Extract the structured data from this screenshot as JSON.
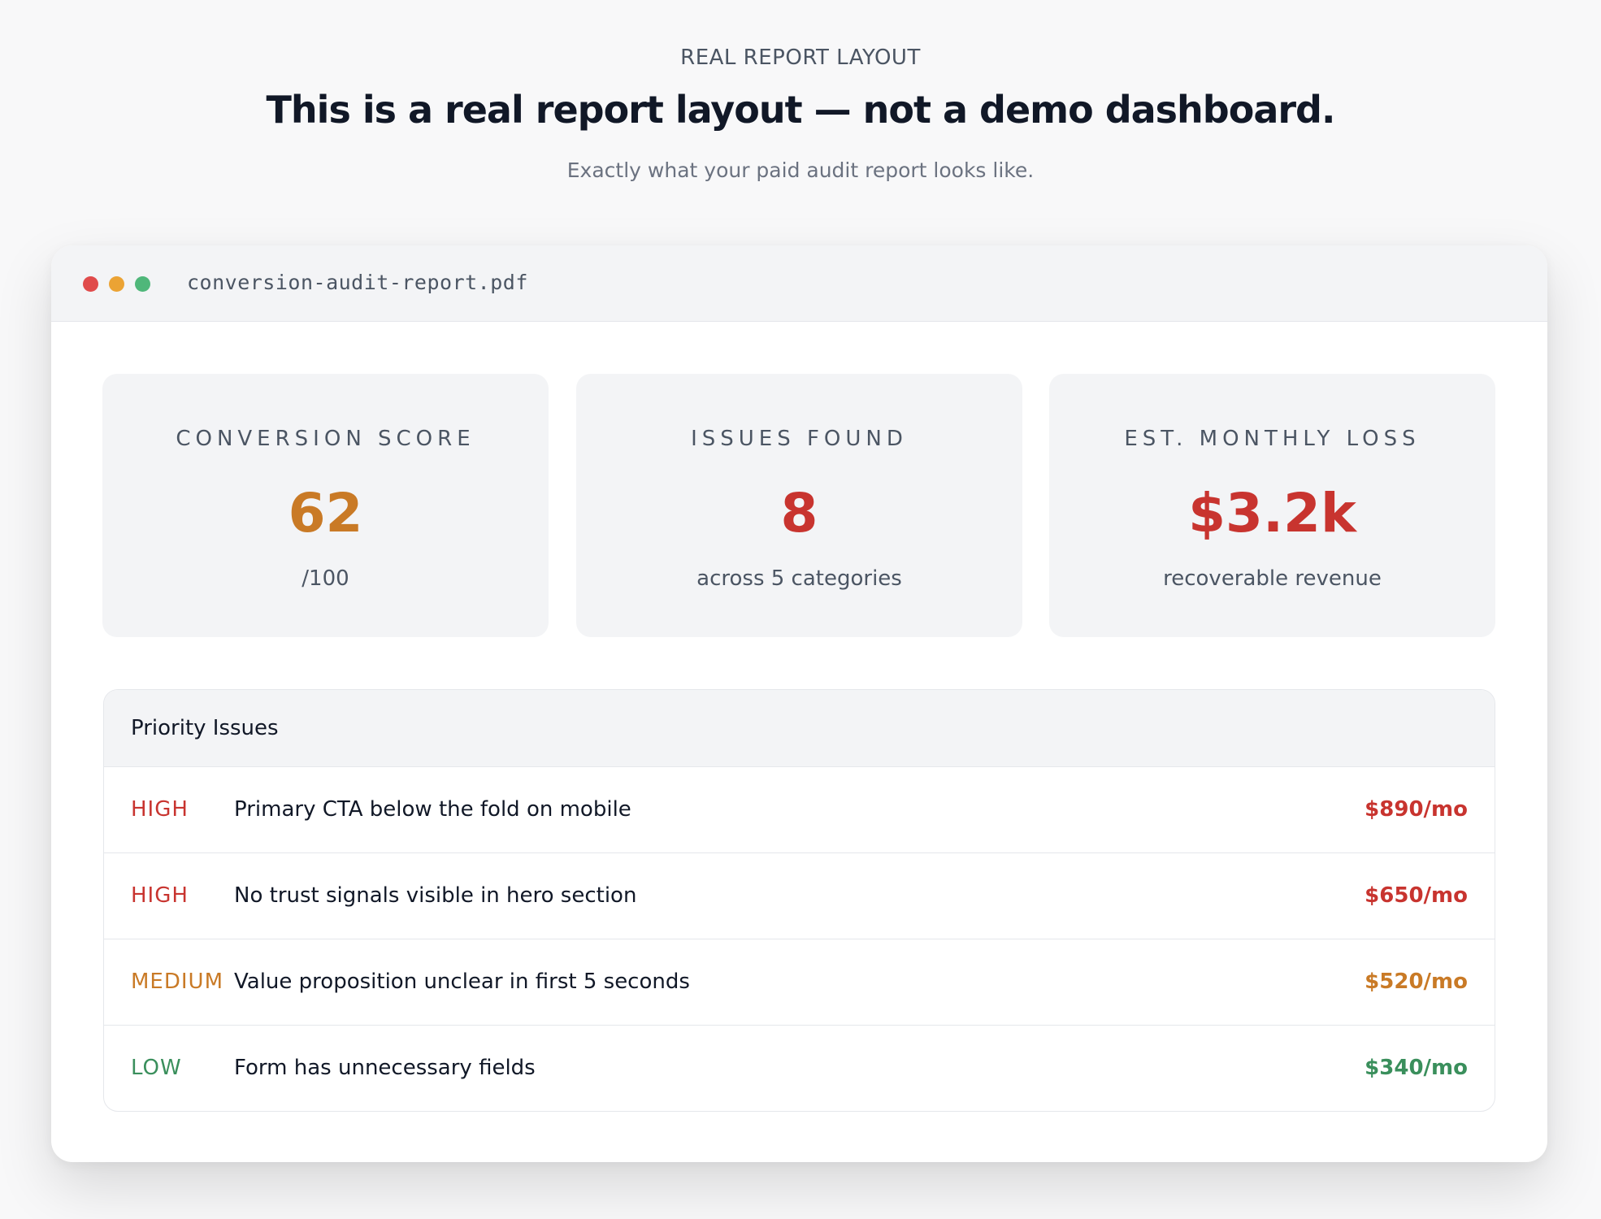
{
  "header": {
    "eyebrow": "REAL REPORT LAYOUT",
    "title": "This is a real report layout — not a demo dashboard.",
    "subtitle": "Exactly what your paid audit report looks like."
  },
  "window": {
    "filename": "conversion-audit-report.pdf",
    "controls": [
      "close-dot",
      "minimize-dot",
      "maximize-dot"
    ]
  },
  "stats": [
    {
      "label": "CONVERSION SCORE",
      "value": "62",
      "sub": "/100",
      "color": "#c97a26"
    },
    {
      "label": "ISSUES FOUND",
      "value": "8",
      "sub": "across 5 categories",
      "color": "#c8342f"
    },
    {
      "label": "EST. MONTHLY LOSS",
      "value": "$3.2k",
      "sub": "recoverable revenue",
      "color": "#c8342f"
    }
  ],
  "issues": {
    "title": "Priority Issues",
    "rows": [
      {
        "severity": "HIGH",
        "description": "Primary CTA below the fold on mobile",
        "amount": "$890/mo",
        "color": "#c8342f"
      },
      {
        "severity": "HIGH",
        "description": "No trust signals visible in hero section",
        "amount": "$650/mo",
        "color": "#c8342f"
      },
      {
        "severity": "MEDIUM",
        "description": "Value proposition unclear in first 5 seconds",
        "amount": "$520/mo",
        "color": "#c97a26"
      },
      {
        "severity": "LOW",
        "description": "Form has unnecessary fields",
        "amount": "$340/mo",
        "color": "#3a8f5c"
      }
    ]
  }
}
